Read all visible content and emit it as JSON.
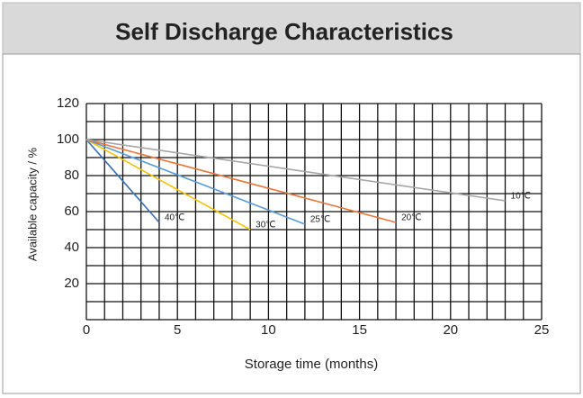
{
  "chart_data": {
    "type": "line",
    "title": "Self Discharge Characteristics",
    "x_label": "Storage time (months)",
    "y_label": "Available capacity / %",
    "xlim": [
      0,
      25
    ],
    "ylim": [
      0,
      120
    ],
    "xticks": [
      0,
      5,
      10,
      15,
      20,
      25
    ],
    "yticks": [
      20,
      40,
      60,
      80,
      100,
      120
    ],
    "xgrid": [
      0,
      1,
      2,
      3,
      4,
      5,
      6,
      7,
      8,
      9,
      10,
      11,
      12,
      13,
      14,
      15,
      16,
      17,
      18,
      19,
      20,
      21,
      22,
      23,
      24,
      25
    ],
    "ygrid": [
      0,
      10,
      20,
      30,
      40,
      50,
      60,
      70,
      80,
      90,
      100,
      110,
      120
    ],
    "series": [
      {
        "name": "40℃",
        "color": "#3a6fb5",
        "x": [
          0,
          4
        ],
        "values": [
          100,
          54
        ]
      },
      {
        "name": "30℃",
        "color": "#f5c400",
        "x": [
          0,
          9
        ],
        "values": [
          100,
          50
        ]
      },
      {
        "name": "25℃",
        "color": "#5b9bd5",
        "x": [
          0,
          12
        ],
        "values": [
          100,
          53
        ]
      },
      {
        "name": "20℃",
        "color": "#e8763a",
        "x": [
          0,
          17
        ],
        "values": [
          100,
          54
        ]
      },
      {
        "name": "10℃",
        "color": "#a6a6a6",
        "x": [
          0,
          23
        ],
        "values": [
          100,
          66
        ]
      }
    ]
  }
}
